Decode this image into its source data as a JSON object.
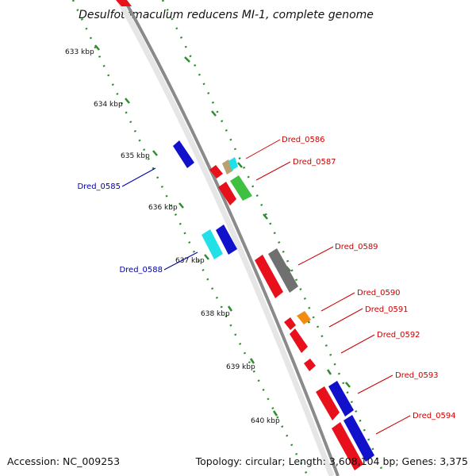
{
  "title": "Desulfotomaculum reducens MI-1, complete genome",
  "footer": {
    "accession": "Accession: NC_009253",
    "summary": "Topology: circular; Length: 3,608,104 bp; Genes: 3,375"
  },
  "colors": {
    "backbone": "#7a7a7a",
    "tick_green": "#2e8b2e",
    "label_forward": "#cc0000",
    "label_reverse": "#0000aa",
    "red": "#e8101a",
    "blue": "#1111cc",
    "cyan": "#22e0e8",
    "gray": "#707070",
    "green": "#40c040",
    "orange": "#f08c10",
    "tan": "#b8a070"
  },
  "kbp_ticks": [
    "633 kbp",
    "634 kbp",
    "635 kbp",
    "636 kbp",
    "637 kbp",
    "638 kbp",
    "639 kbp",
    "640 kbp"
  ],
  "forward_labels": [
    "Dred_0586",
    "Dred_0587",
    "Dred_0589",
    "Dred_0590",
    "Dred_0591",
    "Dred_0592",
    "Dred_0593",
    "Dred_0594"
  ],
  "reverse_labels": [
    "Dred_0585",
    "Dred_0588"
  ]
}
